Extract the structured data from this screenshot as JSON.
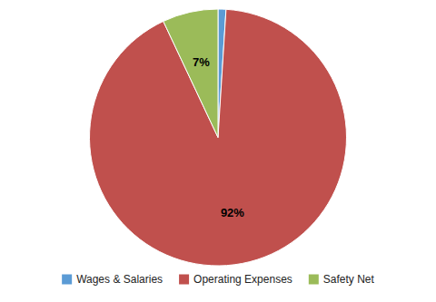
{
  "chart_data": {
    "type": "pie",
    "categories": [
      "Wages & Salaries",
      "Operating Expenses",
      "Safety Net"
    ],
    "values": [
      1,
      92,
      7
    ],
    "value_labels": [
      null,
      "92%",
      "7%"
    ],
    "colors": [
      "#5b9bd5",
      "#c0504d",
      "#9bbb59"
    ],
    "legend": "bottom"
  }
}
